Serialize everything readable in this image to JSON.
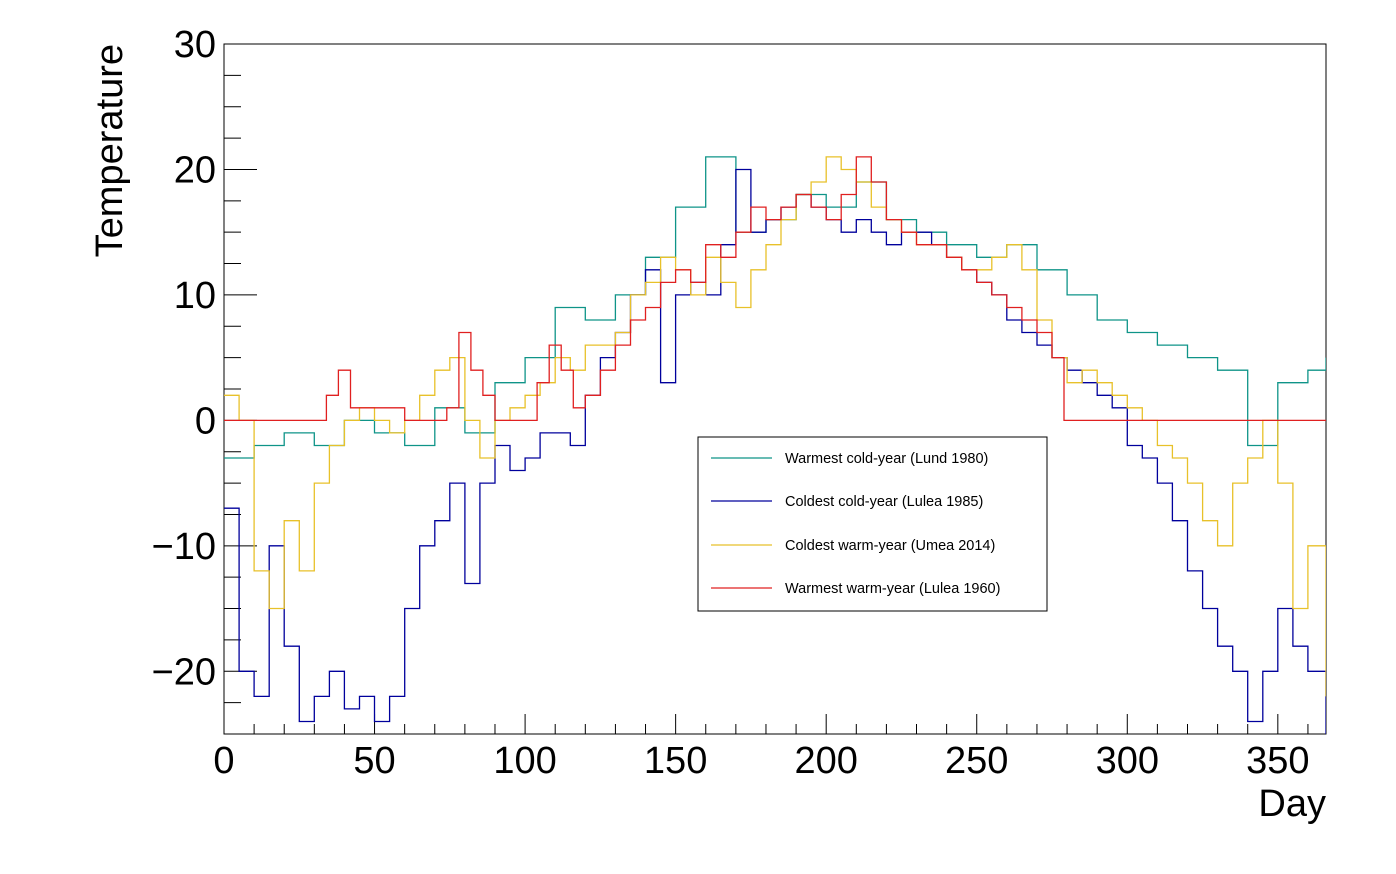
{
  "chart_data": {
    "type": "line",
    "xlabel": "Day",
    "ylabel": "Temperature",
    "xlim": [
      0,
      366
    ],
    "ylim": [
      -25,
      30
    ],
    "x_ticks": [
      0,
      50,
      100,
      150,
      200,
      250,
      300,
      350
    ],
    "y_ticks": [
      -20,
      -10,
      0,
      10,
      20,
      30
    ],
    "x_tick_labels": [
      "0",
      "50",
      "100",
      "150",
      "200",
      "250",
      "300",
      "350"
    ],
    "y_tick_labels": [
      "−20",
      "−10",
      "0",
      "10",
      "20",
      "30"
    ],
    "grid": false,
    "legend_position": "center-right",
    "series": [
      {
        "name": "Warmest cold-year (Lund 1980)",
        "color": "#0f9488",
        "x": [
          0,
          10,
          20,
          30,
          40,
          50,
          60,
          70,
          80,
          90,
          100,
          110,
          120,
          130,
          140,
          150,
          160,
          170,
          180,
          190,
          200,
          210,
          220,
          230,
          240,
          250,
          260,
          270,
          280,
          290,
          300,
          310,
          320,
          330,
          340,
          350,
          360,
          366
        ],
        "y": [
          -3,
          -2,
          -1,
          -2,
          0,
          -1,
          -2,
          1,
          -1,
          3,
          5,
          9,
          8,
          10,
          13,
          17,
          21,
          15,
          16,
          18,
          17,
          19,
          16,
          15,
          14,
          13,
          14,
          12,
          10,
          8,
          7,
          6,
          5,
          4,
          -2,
          3,
          4,
          5
        ]
      },
      {
        "name": "Coldest cold-year (Lulea 1985)",
        "color": "#00009c",
        "x": [
          0,
          5,
          10,
          15,
          20,
          25,
          30,
          35,
          40,
          45,
          50,
          55,
          60,
          65,
          70,
          75,
          80,
          85,
          90,
          95,
          100,
          105,
          110,
          115,
          120,
          125,
          130,
          135,
          140,
          145,
          150,
          155,
          160,
          165,
          170,
          175,
          180,
          185,
          190,
          195,
          200,
          205,
          210,
          215,
          220,
          225,
          230,
          235,
          240,
          245,
          250,
          255,
          260,
          265,
          270,
          275,
          280,
          285,
          290,
          295,
          300,
          305,
          310,
          315,
          320,
          325,
          330,
          335,
          340,
          345,
          350,
          355,
          360,
          366
        ],
        "y": [
          -7,
          -20,
          -22,
          -10,
          -18,
          -24,
          -22,
          -20,
          -23,
          -22,
          -24,
          -22,
          -15,
          -10,
          -8,
          -5,
          -13,
          -5,
          -2,
          -4,
          -3,
          -1,
          -1,
          -2,
          2,
          5,
          7,
          10,
          12,
          3,
          10,
          11,
          10,
          14,
          20,
          15,
          16,
          17,
          18,
          17,
          16,
          15,
          16,
          15,
          14,
          15,
          15,
          14,
          13,
          12,
          11,
          10,
          8,
          7,
          6,
          5,
          4,
          3,
          2,
          1,
          -2,
          -3,
          -5,
          -8,
          -12,
          -15,
          -18,
          -20,
          -24,
          -20,
          -15,
          -18,
          -20,
          -25
        ]
      },
      {
        "name": "Coldest warm-year (Umea 2014)",
        "color": "#e8c12a",
        "x": [
          0,
          5,
          10,
          15,
          20,
          25,
          30,
          35,
          40,
          45,
          50,
          55,
          60,
          65,
          70,
          75,
          80,
          85,
          90,
          95,
          100,
          105,
          110,
          115,
          120,
          125,
          130,
          135,
          140,
          145,
          150,
          155,
          160,
          165,
          170,
          175,
          180,
          185,
          190,
          195,
          200,
          205,
          210,
          215,
          220,
          225,
          230,
          235,
          240,
          245,
          250,
          255,
          260,
          265,
          270,
          275,
          280,
          285,
          290,
          295,
          300,
          305,
          310,
          315,
          320,
          325,
          330,
          335,
          340,
          345,
          350,
          355,
          360,
          366
        ],
        "y": [
          2,
          0,
          -12,
          -15,
          -8,
          -12,
          -5,
          -2,
          0,
          1,
          0,
          -1,
          0,
          2,
          4,
          5,
          0,
          -3,
          0,
          1,
          2,
          3,
          5,
          4,
          6,
          6,
          7,
          10,
          11,
          13,
          12,
          10,
          13,
          11,
          9,
          12,
          14,
          16,
          18,
          19,
          21,
          20,
          19,
          17,
          16,
          15,
          14,
          14,
          13,
          12,
          12,
          13,
          14,
          12,
          8,
          5,
          3,
          4,
          3,
          2,
          1,
          0,
          -2,
          -3,
          -5,
          -8,
          -10,
          -5,
          -3,
          0,
          -5,
          -15,
          -10,
          -22
        ]
      },
      {
        "name": "Warmest warm-year (Lulea 1960)",
        "color": "#e02020",
        "x": [
          0,
          30,
          34,
          38,
          42,
          60,
          74,
          78,
          82,
          86,
          90,
          100,
          104,
          108,
          112,
          116,
          120,
          125,
          130,
          135,
          140,
          145,
          150,
          155,
          160,
          165,
          170,
          175,
          180,
          185,
          190,
          195,
          200,
          205,
          210,
          215,
          220,
          225,
          230,
          235,
          240,
          245,
          250,
          255,
          260,
          265,
          270,
          275,
          279,
          366
        ],
        "y": [
          0,
          0,
          2,
          4,
          1,
          0,
          1,
          7,
          4,
          2,
          0,
          0,
          3,
          6,
          4,
          1,
          2,
          4,
          6,
          8,
          9,
          11,
          12,
          11,
          14,
          13,
          15,
          17,
          16,
          17,
          18,
          17,
          16,
          18,
          21,
          19,
          16,
          15,
          14,
          14,
          13,
          12,
          11,
          10,
          9,
          8,
          7,
          5,
          0,
          0
        ]
      }
    ]
  }
}
